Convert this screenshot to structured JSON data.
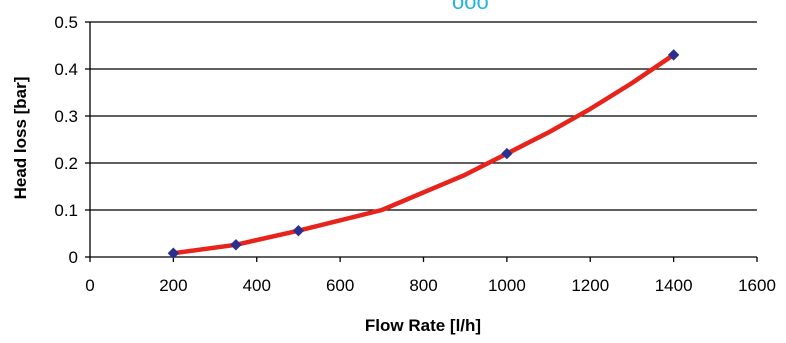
{
  "chart_data": {
    "type": "line",
    "title": "",
    "xlabel": "Flow Rate [l/h]",
    "ylabel": "Head loss [bar]",
    "xlim": [
      0,
      1600
    ],
    "ylim": [
      0,
      0.5
    ],
    "x_ticks": [
      "0",
      "200",
      "400",
      "600",
      "800",
      "1000",
      "1200",
      "1400",
      "1600"
    ],
    "y_ticks": [
      "0",
      "0.1",
      "0.2",
      "0.3",
      "0.4",
      "0.5"
    ],
    "grid": "horizontal",
    "series": [
      {
        "kind": "markers",
        "marker": "diamond",
        "color": "#2b2f8f",
        "x": [
          200,
          350,
          500,
          1000,
          1400
        ],
        "y": [
          0.008,
          0.026,
          0.056,
          0.22,
          0.43
        ]
      },
      {
        "kind": "line",
        "color": "#e8231b",
        "x": [
          200,
          350,
          500,
          700,
          900,
          1000,
          1100,
          1200,
          1300,
          1400
        ],
        "y": [
          0.008,
          0.026,
          0.056,
          0.1,
          0.175,
          0.22,
          0.265,
          0.315,
          0.37,
          0.43
        ]
      }
    ]
  },
  "colors": {
    "line": "#e8231b",
    "marker": "#2b2f8f",
    "grid": "#000000",
    "title_fragment": "#26b7d8"
  }
}
